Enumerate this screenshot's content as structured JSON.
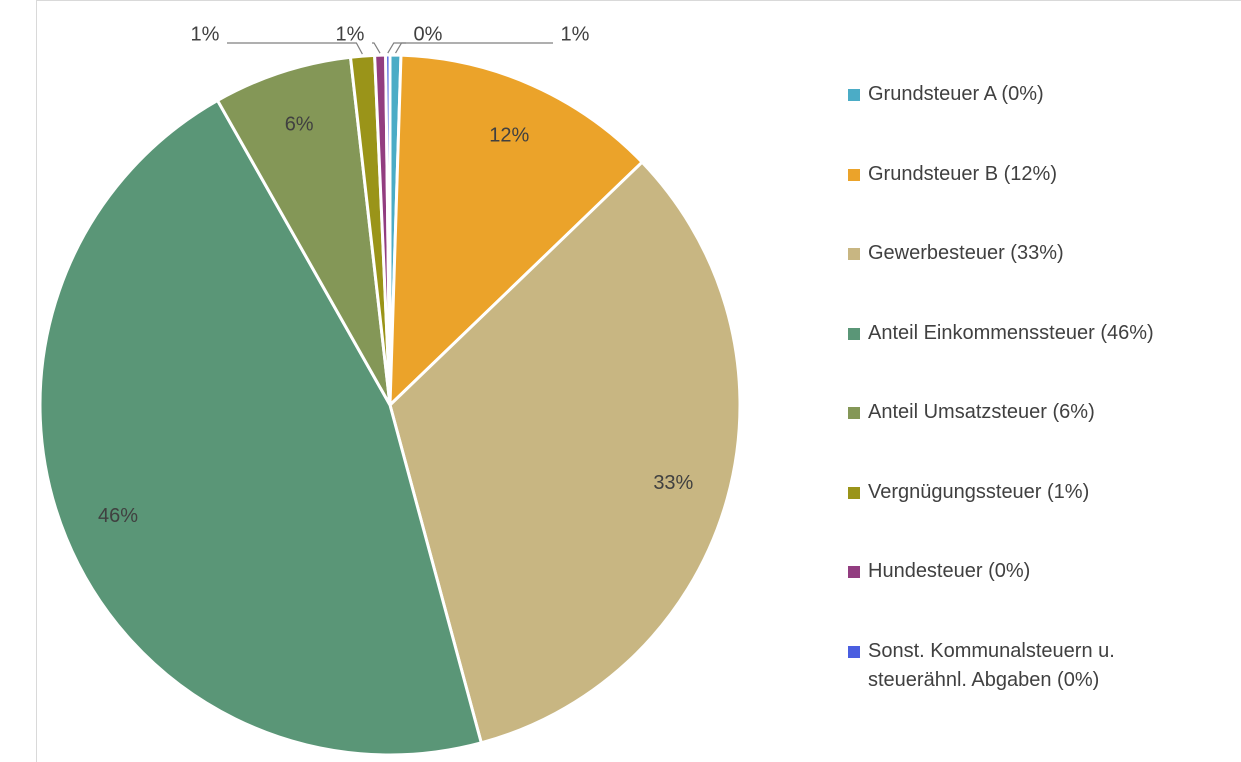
{
  "chart_data": {
    "type": "pie",
    "categories": [
      "Grundsteuer A (0%)",
      "Grundsteuer B (12%)",
      "Gewerbesteuer (33%)",
      "Anteil Einkommenssteuer (46%)",
      "Anteil Umsatzsteuer (6%)",
      "Vergnügungssteuer (1%)",
      "Hundesteuer (0%)",
      "Sonst. Kommunalsteuern u. steuerähnl. Abgaben (0%)"
    ],
    "values": [
      0.5,
      12.3,
      33.0,
      46.0,
      6.4,
      1.1,
      0.5,
      0.2
    ],
    "value_labels": [
      "1%",
      "12%",
      "33%",
      "46%",
      "6%",
      "1%",
      "1%",
      "0%"
    ],
    "colors": [
      "#4bacc6",
      "#eba32a",
      "#c8b682",
      "#5a9677",
      "#849757",
      "#9a9419",
      "#923d80",
      "#4a5ee0"
    ],
    "legend": "right"
  }
}
